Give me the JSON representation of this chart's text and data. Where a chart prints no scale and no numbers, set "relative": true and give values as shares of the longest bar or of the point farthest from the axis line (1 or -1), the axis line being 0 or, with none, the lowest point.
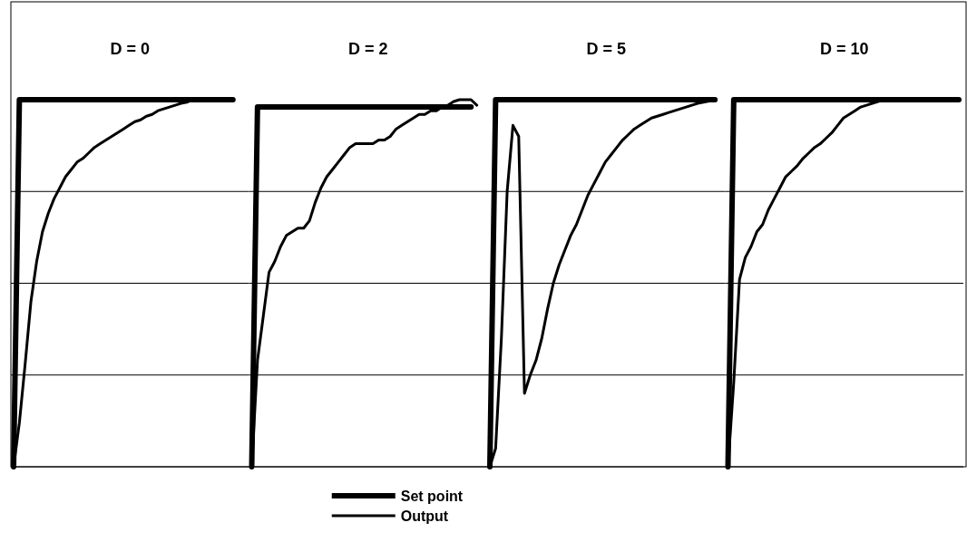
{
  "chart_data": [
    {
      "type": "line",
      "title": "D = 0",
      "relative": true,
      "grid": true,
      "categories": [
        null,
        null,
        null,
        null,
        null,
        null,
        null,
        null,
        null,
        null,
        null,
        null,
        null,
        null,
        null,
        null,
        null,
        null,
        null,
        null,
        null,
        null,
        null,
        null,
        null,
        null,
        null,
        null,
        null,
        null,
        null,
        null,
        null,
        null,
        null,
        null,
        null,
        null,
        null,
        null,
        null
      ],
      "series": [
        {
          "color": "#000000",
          "values": [
            0,
            1,
            1,
            1,
            1,
            1,
            1,
            1,
            1,
            1,
            1,
            1,
            1,
            1,
            1,
            1,
            1,
            1,
            1,
            1,
            1,
            1,
            1,
            1,
            1,
            1,
            1,
            1,
            1,
            1,
            1,
            1,
            1,
            1,
            1,
            1,
            1,
            1,
            1,
            null,
            null
          ]
        },
        {
          "color": "#000000",
          "values": [
            0,
            0.12,
            0.28,
            0.45,
            0.56,
            0.64,
            0.69,
            0.73,
            0.76,
            0.79,
            0.81,
            0.83,
            0.84,
            0.855,
            0.87,
            0.88,
            0.89,
            0.9,
            0.91,
            0.92,
            0.93,
            0.94,
            0.945,
            0.955,
            0.96,
            0.97,
            0.975,
            0.98,
            0.985,
            0.99,
            0.993,
            1,
            null,
            null,
            null,
            null,
            null,
            null,
            null,
            null,
            null
          ]
        }
      ]
    },
    {
      "type": "line",
      "title": "D = 2",
      "relative": true,
      "grid": true,
      "legend": "bottom",
      "categories": [
        null,
        null,
        null,
        null,
        null,
        null,
        null,
        null,
        null,
        null,
        null,
        null,
        null,
        null,
        null,
        null,
        null,
        null,
        null,
        null,
        null,
        null,
        null,
        null,
        null,
        null,
        null,
        null,
        null,
        null,
        null,
        null,
        null,
        null,
        null,
        null,
        null,
        null,
        null,
        null,
        null
      ],
      "series": [
        {
          "name": "Set point",
          "color": "#000000",
          "values": [
            0,
            0.98,
            0.98,
            0.98,
            0.98,
            0.98,
            0.98,
            0.98,
            0.98,
            0.98,
            0.98,
            0.98,
            0.98,
            0.98,
            0.98,
            0.98,
            0.98,
            0.98,
            0.98,
            0.98,
            0.98,
            0.98,
            0.98,
            0.98,
            0.98,
            0.98,
            0.98,
            0.98,
            0.98,
            0.98,
            0.98,
            0.98,
            0.98,
            0.98,
            0.98,
            0.98,
            0.98,
            0.98,
            0.98,
            null,
            null
          ]
        },
        {
          "name": "Output",
          "color": "#000000",
          "values": [
            0,
            0.29,
            0.41,
            0.53,
            0.56,
            0.6,
            0.63,
            0.64,
            0.65,
            0.65,
            0.67,
            0.72,
            0.76,
            0.79,
            0.81,
            0.83,
            0.85,
            0.87,
            0.88,
            0.88,
            0.88,
            0.88,
            0.89,
            0.89,
            0.9,
            0.92,
            0.93,
            0.94,
            0.95,
            0.96,
            0.96,
            0.97,
            0.97,
            0.98,
            0.985,
            0.995,
            1,
            1,
            1,
            0.985,
            null
          ]
        }
      ]
    },
    {
      "type": "line",
      "title": "D = 5",
      "relative": true,
      "grid": true,
      "categories": [
        null,
        null,
        null,
        null,
        null,
        null,
        null,
        null,
        null,
        null,
        null,
        null,
        null,
        null,
        null,
        null,
        null,
        null,
        null,
        null,
        null,
        null,
        null,
        null,
        null,
        null,
        null,
        null,
        null,
        null,
        null,
        null,
        null,
        null,
        null,
        null,
        null,
        null,
        null,
        null,
        null
      ],
      "series": [
        {
          "color": "#000000",
          "values": [
            0,
            1,
            1,
            1,
            1,
            1,
            1,
            1,
            1,
            1,
            1,
            1,
            1,
            1,
            1,
            1,
            1,
            1,
            1,
            1,
            1,
            1,
            1,
            1,
            1,
            1,
            1,
            1,
            1,
            1,
            1,
            1,
            1,
            1,
            1,
            1,
            1,
            1,
            1,
            1,
            null
          ]
        },
        {
          "color": "#000000",
          "values": [
            0,
            0.05,
            0.35,
            0.75,
            0.93,
            0.9,
            0.2,
            0.25,
            0.29,
            0.35,
            0.43,
            0.5,
            0.55,
            0.59,
            0.63,
            0.66,
            0.7,
            0.74,
            0.77,
            0.8,
            0.83,
            0.85,
            0.87,
            0.89,
            0.905,
            0.92,
            0.93,
            0.94,
            0.95,
            0.955,
            0.96,
            0.965,
            0.97,
            0.975,
            0.98,
            0.985,
            0.99,
            0.993,
            0.996,
            1,
            null
          ]
        }
      ]
    },
    {
      "type": "line",
      "title": "D = 10",
      "relative": true,
      "grid": true,
      "categories": [
        null,
        null,
        null,
        null,
        null,
        null,
        null,
        null,
        null,
        null,
        null,
        null,
        null,
        null,
        null,
        null,
        null,
        null,
        null,
        null,
        null,
        null,
        null,
        null,
        null,
        null,
        null,
        null,
        null,
        null,
        null,
        null,
        null,
        null,
        null,
        null,
        null,
        null,
        null,
        null,
        null
      ],
      "series": [
        {
          "color": "#000000",
          "values": [
            0,
            1,
            1,
            1,
            1,
            1,
            1,
            1,
            1,
            1,
            1,
            1,
            1,
            1,
            1,
            1,
            1,
            1,
            1,
            1,
            1,
            1,
            1,
            1,
            1,
            1,
            1,
            1,
            1,
            1,
            1,
            1,
            1,
            1,
            1,
            1,
            1,
            1,
            1,
            1,
            1
          ]
        },
        {
          "color": "#000000",
          "values": [
            0,
            0.23,
            0.51,
            0.57,
            0.6,
            0.64,
            0.66,
            0.7,
            0.73,
            0.76,
            0.79,
            0.805,
            0.82,
            0.84,
            0.855,
            0.87,
            0.88,
            0.895,
            0.91,
            0.93,
            0.95,
            0.96,
            0.97,
            0.98,
            0.985,
            0.99,
            0.995,
            1,
            null,
            null,
            null,
            null,
            null,
            null,
            null,
            null,
            null,
            null,
            null,
            null,
            null
          ]
        }
      ]
    }
  ]
}
